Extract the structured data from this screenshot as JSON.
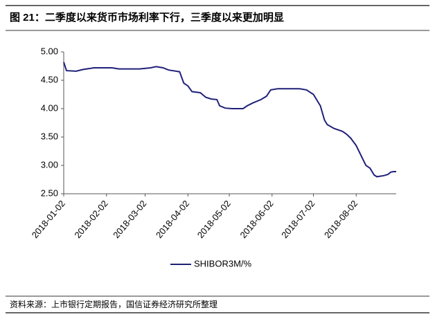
{
  "header": {
    "title": "图 21：二季度以来货币市场利率下行，三季度以来更加明显"
  },
  "footer": {
    "source": "资料来源：上市银行定期报告，国信证券经济研究所整理"
  },
  "chart_data": {
    "type": "line",
    "x": [
      "2018-01-02",
      "2018-01-04",
      "2018-01-11",
      "2018-01-16",
      "2018-01-24",
      "2018-02-06",
      "2018-02-11",
      "2018-02-26",
      "2018-03-06",
      "2018-03-10",
      "2018-03-15",
      "2018-03-19",
      "2018-03-27",
      "2018-03-30",
      "2018-04-02",
      "2018-04-05",
      "2018-04-11",
      "2018-04-15",
      "2018-04-19",
      "2018-04-23",
      "2018-04-25",
      "2018-04-29",
      "2018-05-04",
      "2018-05-12",
      "2018-05-15",
      "2018-05-19",
      "2018-05-25",
      "2018-05-29",
      "2018-06-01",
      "2018-06-06",
      "2018-06-22",
      "2018-06-27",
      "2018-07-02",
      "2018-07-07",
      "2018-07-10",
      "2018-07-12",
      "2018-07-17",
      "2018-07-23",
      "2018-07-26",
      "2018-07-29",
      "2018-08-02",
      "2018-08-07",
      "2018-08-09",
      "2018-08-12",
      "2018-08-15",
      "2018-08-17",
      "2018-08-22",
      "2018-08-25",
      "2018-08-27",
      "2018-08-29",
      "2018-08-31"
    ],
    "series": [
      {
        "name": "SHIBOR3M/%",
        "color": "#1f1f7a",
        "values": [
          4.82,
          4.67,
          4.66,
          4.69,
          4.72,
          4.72,
          4.7,
          4.7,
          4.72,
          4.74,
          4.72,
          4.68,
          4.65,
          4.45,
          4.4,
          4.3,
          4.28,
          4.2,
          4.17,
          4.16,
          4.05,
          4.01,
          4.0,
          4.0,
          4.05,
          4.1,
          4.16,
          4.22,
          4.33,
          4.35,
          4.35,
          4.33,
          4.25,
          4.05,
          3.8,
          3.72,
          3.65,
          3.6,
          3.55,
          3.48,
          3.35,
          3.1,
          3.0,
          2.95,
          2.83,
          2.8,
          2.82,
          2.84,
          2.88,
          2.89,
          2.89
        ]
      }
    ],
    "xlim": [
      "2018-01-02",
      "2018-08-31"
    ],
    "xticks": [
      "2018-01-02",
      "2018-02-02",
      "2018-03-02",
      "2018-04-02",
      "2018-05-02",
      "2018-06-02",
      "2018-07-02",
      "2018-08-02"
    ],
    "ylim": [
      2.5,
      5.0
    ],
    "yticks": [
      {
        "value": 2.5,
        "label": "2.50"
      },
      {
        "value": 3.0,
        "label": "3.00"
      },
      {
        "value": 3.5,
        "label": "3.50"
      },
      {
        "value": 4.0,
        "label": "4.00"
      },
      {
        "value": 4.5,
        "label": "4.50"
      },
      {
        "value": 5.0,
        "label": "5.00"
      }
    ],
    "legend": "bottom"
  }
}
